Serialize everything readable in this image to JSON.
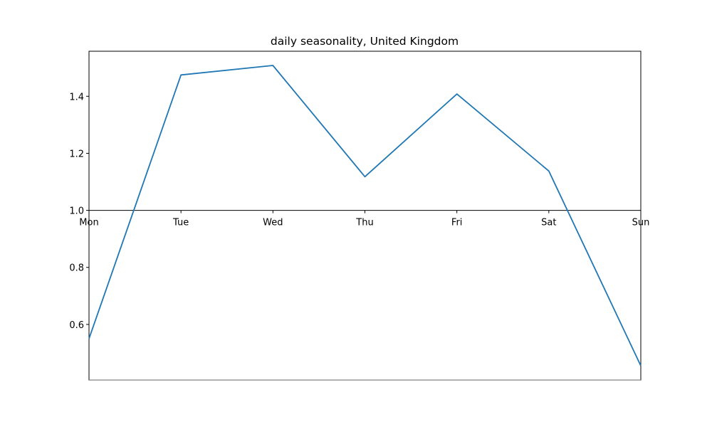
{
  "chart_data": {
    "type": "line",
    "title": "daily seasonality, United Kingdom",
    "xlabel": "",
    "ylabel": "",
    "categories": [
      "Mon",
      "Tue",
      "Wed",
      "Thu",
      "Fri",
      "Sat",
      "Sun"
    ],
    "series": [
      {
        "values": [
          0.55,
          1.475,
          1.508,
          1.118,
          1.408,
          1.138,
          0.455
        ],
        "color": "#1f77b4"
      }
    ],
    "yticks": [
      0.6,
      0.8,
      1.0,
      1.2,
      1.4
    ],
    "ytick_labels": [
      "0.6",
      "0.8",
      "1.0",
      "1.2",
      "1.4"
    ],
    "ylim": [
      0.405,
      1.558
    ],
    "x_axis_at_y": 1.0,
    "grid": false,
    "legend": "none",
    "colors": {
      "line": "#1f77b4",
      "frame": "#000000",
      "bottom_spine": "#808080"
    }
  }
}
